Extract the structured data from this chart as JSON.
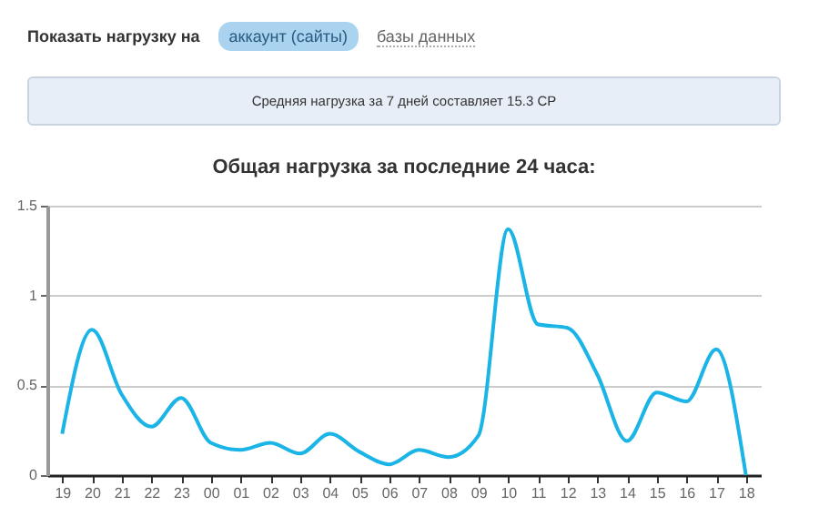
{
  "chart_data": {
    "type": "line",
    "title": "Общая нагрузка за последние 24 часа:",
    "annotations": [
      "Показать нагрузку на",
      "аккаунт (сайты)",
      "базы данных",
      "Средняя нагрузка за 7 дней составляет 15.3 CP"
    ],
    "categories": [
      "19",
      "20",
      "21",
      "22",
      "23",
      "00",
      "01",
      "02",
      "03",
      "04",
      "05",
      "06",
      "07",
      "08",
      "09",
      "10",
      "11",
      "12",
      "13",
      "14",
      "15",
      "16",
      "17",
      "18"
    ],
    "series": [
      {
        "color": "#1ab4e6",
        "values": [
          0.23,
          0.81,
          0.45,
          0.27,
          0.43,
          0.18,
          0.14,
          0.18,
          0.12,
          0.23,
          0.13,
          0.06,
          0.14,
          0.1,
          0.22,
          1.37,
          0.84,
          0.82,
          0.56,
          0.19,
          0.46,
          0.41,
          0.7,
          0
        ]
      }
    ],
    "ylim": [
      0,
      1.5
    ],
    "yticks": [
      0,
      0.5,
      1,
      1.5
    ],
    "grid": "y",
    "marker": "none",
    "line_style": "solid"
  }
}
